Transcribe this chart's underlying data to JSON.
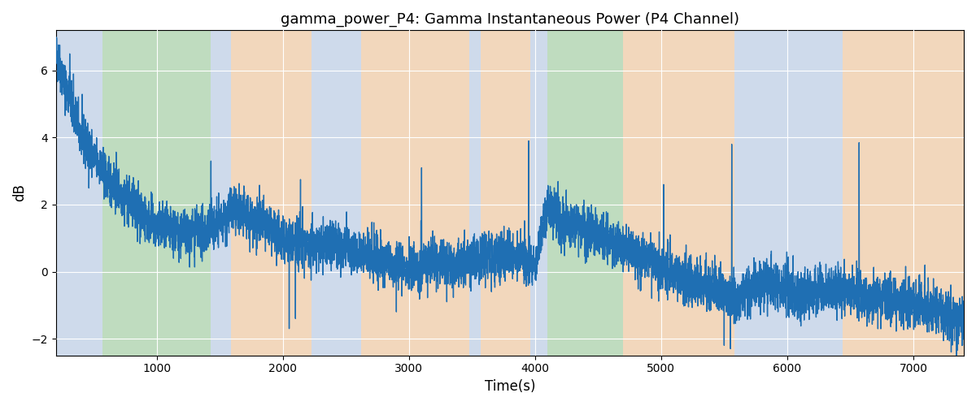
{
  "title": "gamma_power_P4: Gamma Instantaneous Power (P4 Channel)",
  "xlabel": "Time(s)",
  "ylabel": "dB",
  "xlim": [
    200,
    7400
  ],
  "ylim": [
    -2.5,
    7.2
  ],
  "yticks": [
    -2,
    0,
    2,
    4,
    6
  ],
  "xticks": [
    1000,
    2000,
    3000,
    4000,
    5000,
    6000,
    7000
  ],
  "line_color": "#1f6fb3",
  "line_width": 1.0,
  "bg_color": "white",
  "grid_color": "white",
  "grid_alpha": 1.0,
  "bands": [
    {
      "xmin": 200,
      "xmax": 570,
      "color": "#aec6e8",
      "alpha": 0.5
    },
    {
      "xmin": 570,
      "xmax": 1430,
      "color": "#90c990",
      "alpha": 0.5
    },
    {
      "xmin": 1430,
      "xmax": 1590,
      "color": "#aec6e8",
      "alpha": 0.5
    },
    {
      "xmin": 1590,
      "xmax": 2230,
      "color": "#f5c08a",
      "alpha": 0.5
    },
    {
      "xmin": 2230,
      "xmax": 2620,
      "color": "#aec6e8",
      "alpha": 0.5
    },
    {
      "xmin": 2620,
      "xmax": 3480,
      "color": "#f5c08a",
      "alpha": 0.5
    },
    {
      "xmin": 3480,
      "xmax": 3570,
      "color": "#aec6e8",
      "alpha": 0.5
    },
    {
      "xmin": 3570,
      "xmax": 3960,
      "color": "#f5c08a",
      "alpha": 0.5
    },
    {
      "xmin": 3960,
      "xmax": 4100,
      "color": "#aec6e8",
      "alpha": 0.5
    },
    {
      "xmin": 4100,
      "xmax": 4700,
      "color": "#90c990",
      "alpha": 0.5
    },
    {
      "xmin": 4700,
      "xmax": 5090,
      "color": "#f5c08a",
      "alpha": 0.5
    },
    {
      "xmin": 5090,
      "xmax": 5580,
      "color": "#f5c08a",
      "alpha": 0.5
    },
    {
      "xmin": 5580,
      "xmax": 5620,
      "color": "#aec6e8",
      "alpha": 0.5
    },
    {
      "xmin": 5620,
      "xmax": 6440,
      "color": "#aec6e8",
      "alpha": 0.5
    },
    {
      "xmin": 6440,
      "xmax": 7400,
      "color": "#f5c08a",
      "alpha": 0.5
    }
  ],
  "signal_seed": 42,
  "signal_n": 7200
}
